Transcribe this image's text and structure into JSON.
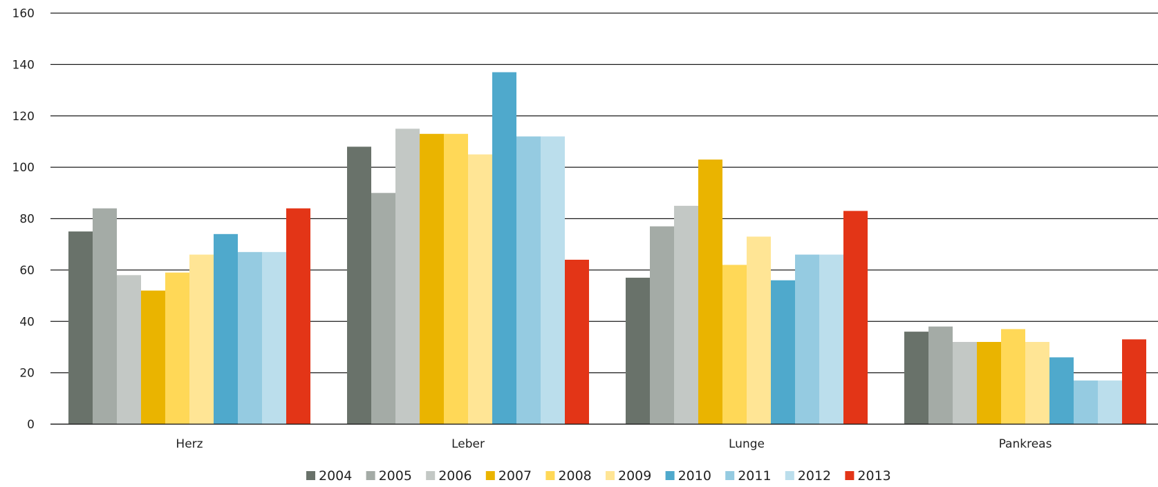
{
  "chart_data": {
    "type": "bar",
    "categories": [
      "Herz",
      "Leber",
      "Lunge",
      "Pankreas"
    ],
    "series": [
      {
        "name": "2004",
        "color": "#69726a",
        "values": [
          75,
          108,
          57,
          36
        ]
      },
      {
        "name": "2005",
        "color": "#a4aba6",
        "values": [
          84,
          90,
          77,
          38
        ]
      },
      {
        "name": "2006",
        "color": "#c3c8c5",
        "values": [
          58,
          115,
          85,
          32
        ]
      },
      {
        "name": "2007",
        "color": "#eab400",
        "values": [
          52,
          113,
          103,
          32
        ]
      },
      {
        "name": "2008",
        "color": "#ffd857",
        "values": [
          59,
          113,
          62,
          37
        ]
      },
      {
        "name": "2009",
        "color": "#ffe595",
        "values": [
          66,
          105,
          73,
          32
        ]
      },
      {
        "name": "2010",
        "color": "#4fa9cc",
        "values": [
          74,
          137,
          56,
          26
        ]
      },
      {
        "name": "2011",
        "color": "#95cbe1",
        "values": [
          67,
          112,
          66,
          17
        ]
      },
      {
        "name": "2012",
        "color": "#bbdeec",
        "values": [
          67,
          112,
          66,
          17
        ]
      },
      {
        "name": "2013",
        "color": "#e33517",
        "values": [
          84,
          64,
          83,
          33
        ]
      }
    ],
    "yticks": [
      "0",
      "20",
      "40",
      "60",
      "80",
      "100",
      "120",
      "140",
      "160"
    ],
    "ylim": [
      0,
      160
    ],
    "grid": true,
    "legend_position": "bottom"
  }
}
